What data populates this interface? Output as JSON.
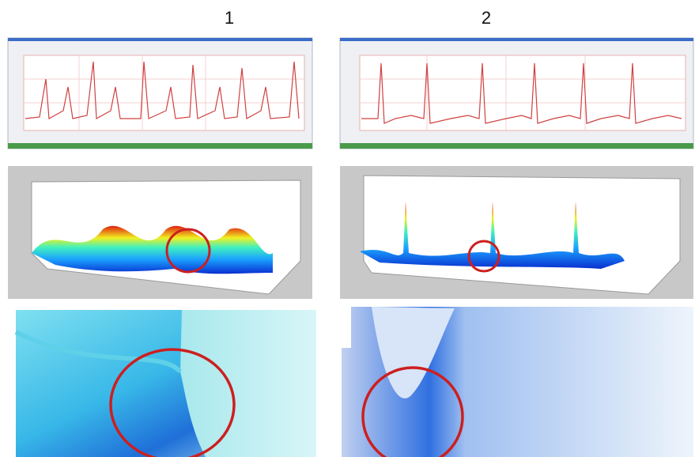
{
  "column_labels": [
    "1",
    "2"
  ]
}
